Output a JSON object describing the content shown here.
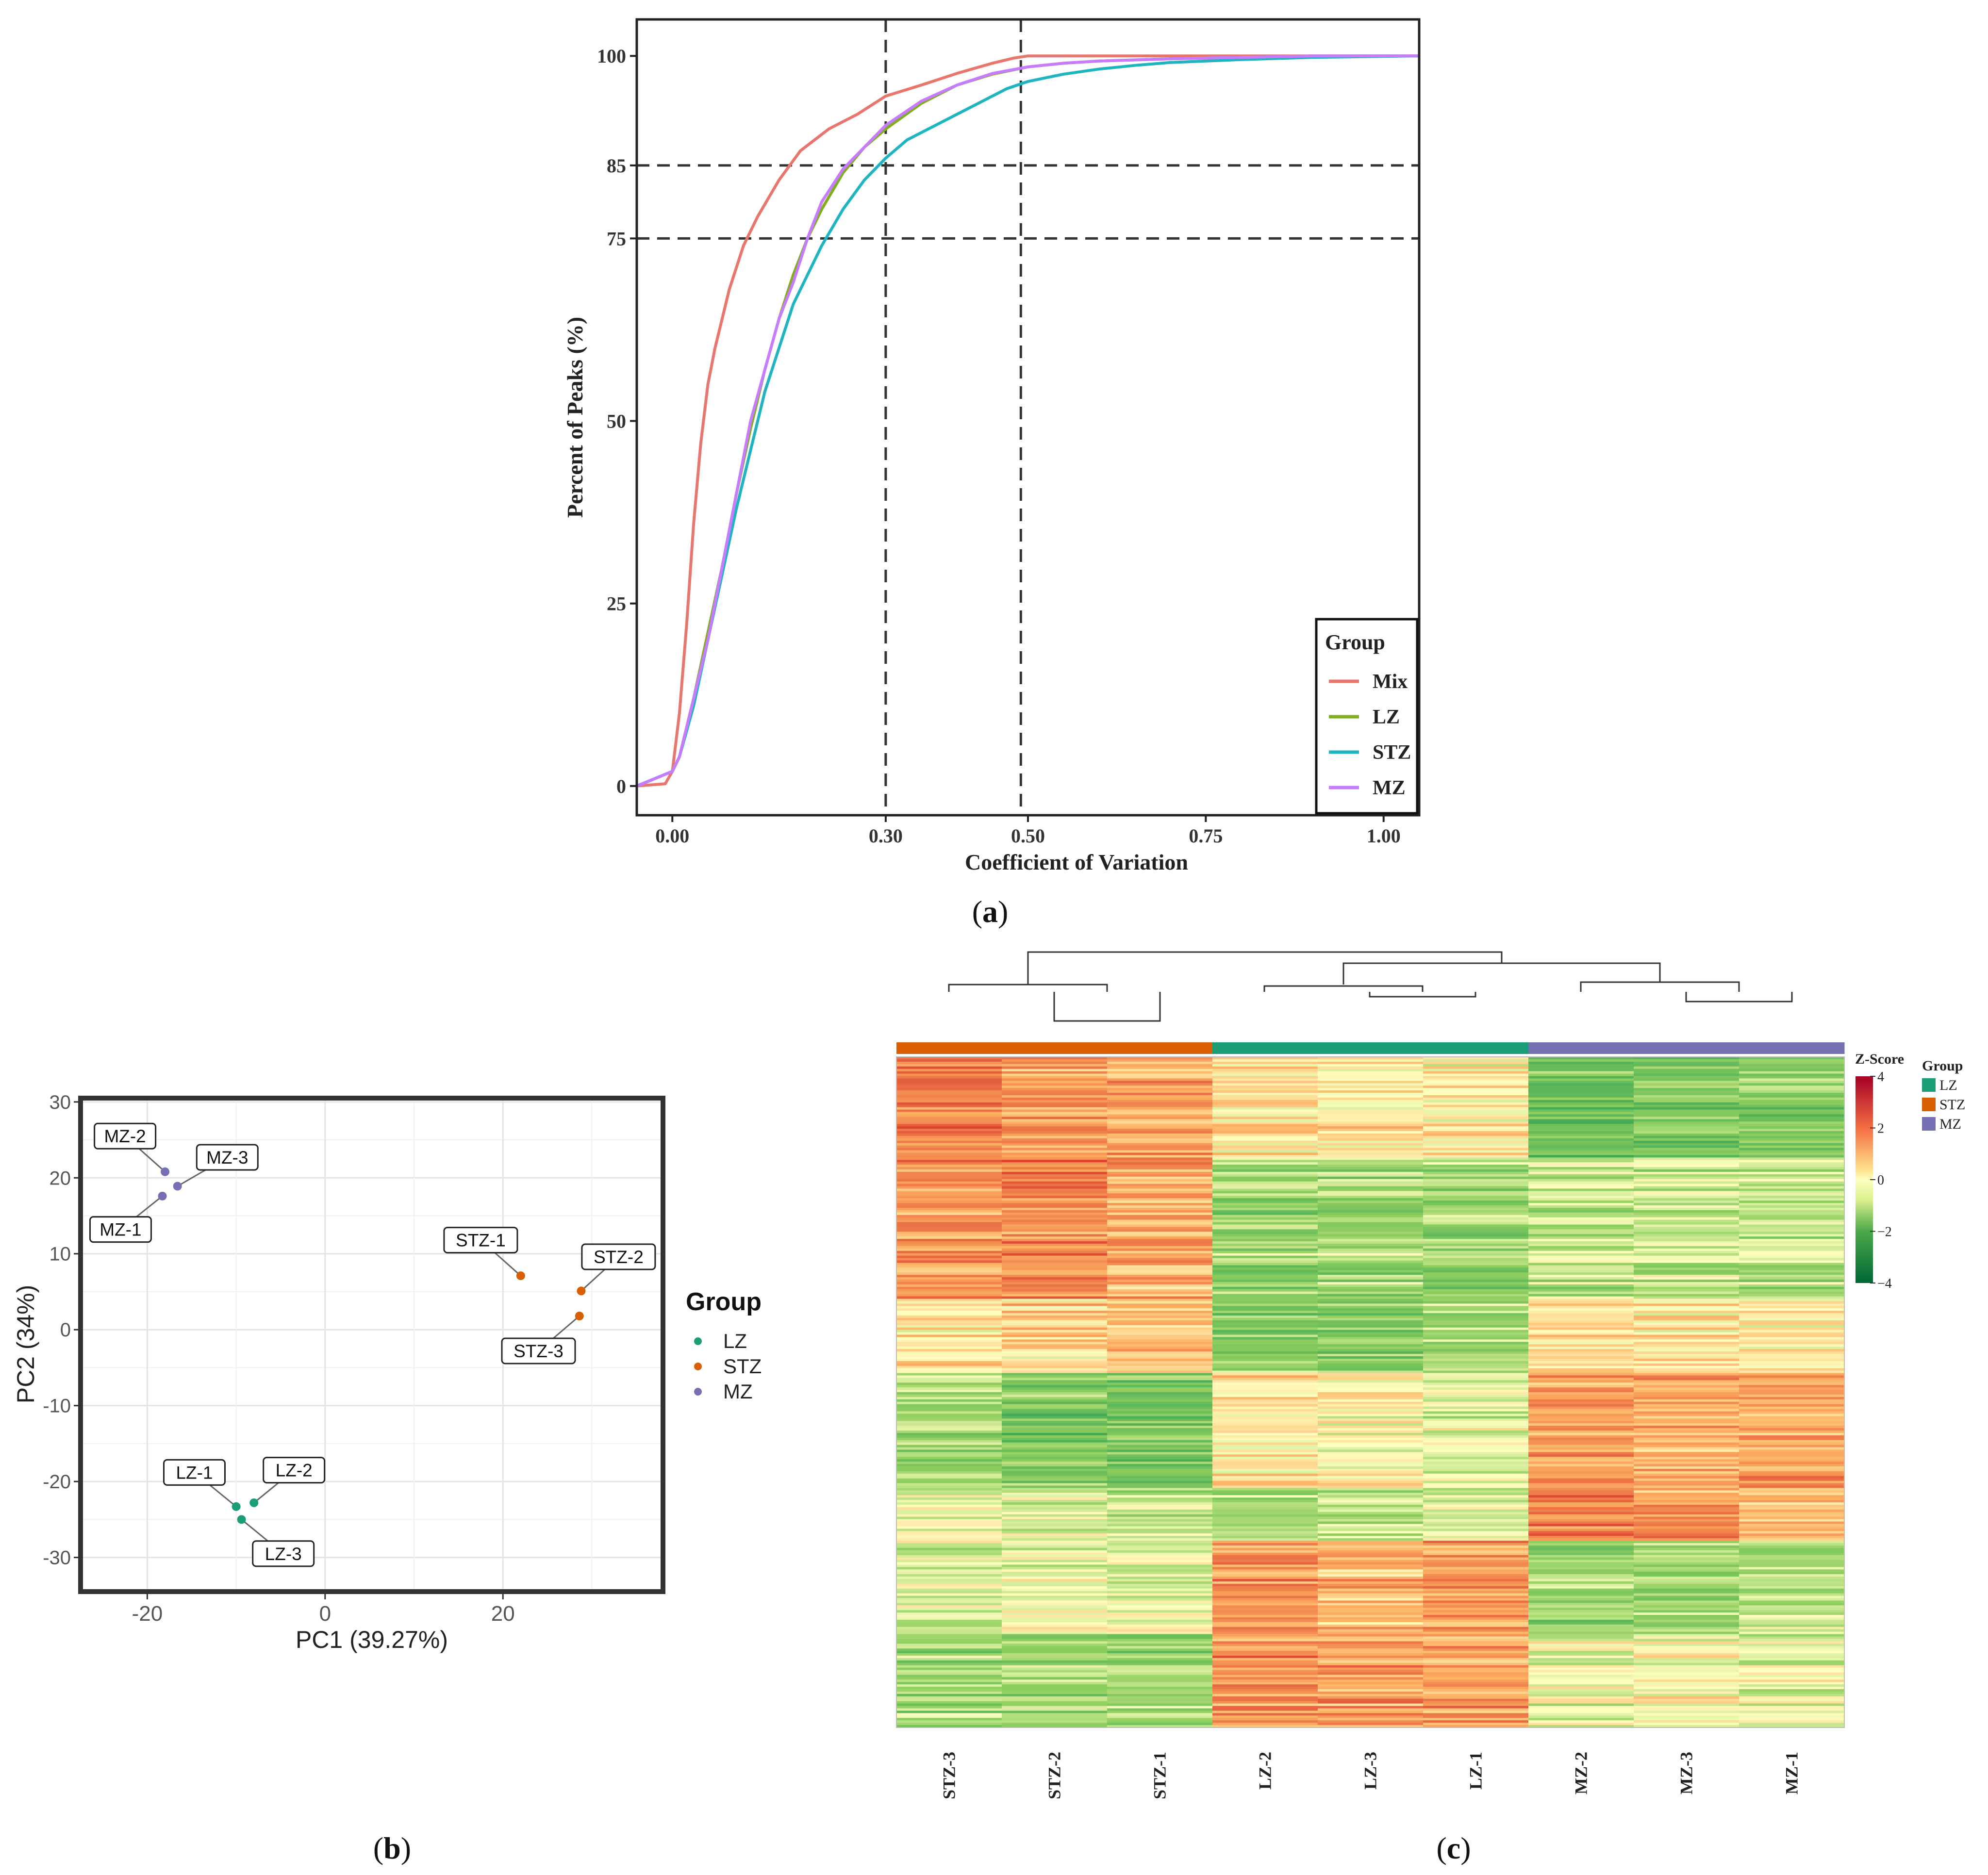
{
  "chart_data": [
    {
      "type": "line",
      "panel_label": "(a)",
      "panel_letter": "a",
      "title": "",
      "xlabel": "Coefficient of Variation",
      "ylabel": "Percent of Peaks (%)",
      "xlim": [
        -0.05,
        1.05
      ],
      "ylim": [
        -4,
        105
      ],
      "x_ticks": [
        0.0,
        0.3,
        0.5,
        0.75,
        1.0
      ],
      "x_tick_labels": [
        "0.00",
        "0.30",
        "0.50",
        "0.75",
        "1.00"
      ],
      "y_ticks": [
        0,
        25,
        50,
        75,
        85,
        100
      ],
      "y_tick_labels": [
        "0",
        "25",
        "50",
        "75",
        "85",
        "100"
      ],
      "reference_lines": {
        "vertical": [
          0.3,
          0.49
        ],
        "horizontal": [
          75,
          85
        ]
      },
      "legend": {
        "title": "Group",
        "position": "bottom-right"
      },
      "series": [
        {
          "name": "Mix",
          "color": "#e8766d",
          "x": [
            -0.05,
            -0.01,
            0.0,
            0.01,
            0.02,
            0.03,
            0.04,
            0.05,
            0.06,
            0.07,
            0.08,
            0.1,
            0.12,
            0.15,
            0.18,
            0.22,
            0.26,
            0.3,
            0.35,
            0.4,
            0.45,
            0.48,
            0.5,
            0.55,
            0.6,
            0.7,
            0.8,
            1.05
          ],
          "y": [
            0,
            0.3,
            2,
            10,
            22,
            36,
            47,
            55,
            60,
            64,
            68,
            74,
            78,
            83,
            87,
            90,
            92,
            94.5,
            96,
            97.6,
            99,
            99.7,
            100,
            100,
            100,
            100,
            100,
            100
          ]
        },
        {
          "name": "LZ",
          "color": "#7fae1e",
          "x": [
            -0.05,
            0.0,
            0.01,
            0.03,
            0.05,
            0.07,
            0.09,
            0.11,
            0.13,
            0.15,
            0.17,
            0.19,
            0.21,
            0.24,
            0.27,
            0.3,
            0.35,
            0.4,
            0.45,
            0.5,
            0.55,
            0.6,
            0.7,
            0.8,
            0.9,
            1.05
          ],
          "y": [
            0,
            2,
            4,
            12,
            21,
            30,
            40,
            49,
            57,
            64,
            70,
            75,
            79,
            84,
            87.5,
            90,
            93.5,
            96,
            97.5,
            98.5,
            99,
            99.3,
            99.6,
            99.8,
            100,
            100
          ]
        },
        {
          "name": "STZ",
          "color": "#1fb5c0",
          "x": [
            -0.05,
            0.0,
            0.01,
            0.03,
            0.05,
            0.07,
            0.09,
            0.11,
            0.13,
            0.15,
            0.17,
            0.19,
            0.21,
            0.24,
            0.27,
            0.3,
            0.33,
            0.37,
            0.42,
            0.47,
            0.5,
            0.55,
            0.6,
            0.65,
            0.7,
            0.8,
            0.9,
            1.05
          ],
          "y": [
            0,
            2,
            4,
            11,
            20,
            29,
            38,
            46,
            54,
            60,
            66,
            70,
            74,
            79,
            83,
            86,
            88.5,
            90.5,
            93,
            95.5,
            96.5,
            97.5,
            98.2,
            98.7,
            99.1,
            99.5,
            99.8,
            100
          ]
        },
        {
          "name": "MZ",
          "color": "#c77cff",
          "x": [
            -0.05,
            0.0,
            0.01,
            0.03,
            0.05,
            0.07,
            0.09,
            0.11,
            0.13,
            0.15,
            0.17,
            0.19,
            0.21,
            0.24,
            0.27,
            0.3,
            0.35,
            0.4,
            0.45,
            0.5,
            0.55,
            0.6,
            0.7,
            0.8,
            0.9,
            1.05
          ],
          "y": [
            0,
            2,
            4,
            12,
            20,
            30,
            40,
            50,
            57,
            64,
            69,
            75,
            80,
            84.5,
            87.5,
            90.5,
            93.8,
            96,
            97.6,
            98.5,
            99,
            99.3,
            99.6,
            99.8,
            100,
            100
          ]
        }
      ]
    },
    {
      "type": "scatter",
      "panel_label": "(b)",
      "panel_letter": "b",
      "title": "",
      "xlabel": "PC1 (39.27%)",
      "ylabel": "PC2 (34%)",
      "xlim": [
        -27.5,
        38
      ],
      "ylim": [
        -34.5,
        30.5
      ],
      "x_ticks": [
        -20,
        0,
        20
      ],
      "x_tick_labels": [
        "-20",
        "0",
        "20"
      ],
      "y_ticks": [
        -30,
        -20,
        -10,
        0,
        10,
        20,
        30
      ],
      "y_tick_labels": [
        "-30",
        "-20",
        "-10",
        "0",
        "10",
        "20",
        "30"
      ],
      "legend": {
        "title": "Group",
        "position": "right"
      },
      "groups": [
        {
          "name": "LZ",
          "color": "#1b9e77"
        },
        {
          "name": "STZ",
          "color": "#d95f02"
        },
        {
          "name": "MZ",
          "color": "#7570b3"
        }
      ],
      "points": [
        {
          "label": "MZ-2",
          "group": "MZ",
          "x": -18,
          "y": 20.8,
          "lx": -22.5,
          "ly": 25.5
        },
        {
          "label": "MZ-3",
          "group": "MZ",
          "x": -16.6,
          "y": 18.9,
          "lx": -11,
          "ly": 22.7
        },
        {
          "label": "MZ-1",
          "group": "MZ",
          "x": -18.3,
          "y": 17.6,
          "lx": -23,
          "ly": 13.2
        },
        {
          "label": "STZ-1",
          "group": "STZ",
          "x": 22,
          "y": 7.1,
          "lx": 17.5,
          "ly": 11.8
        },
        {
          "label": "STZ-2",
          "group": "STZ",
          "x": 28.8,
          "y": 5.1,
          "lx": 33,
          "ly": 9.6
        },
        {
          "label": "STZ-3",
          "group": "STZ",
          "x": 28.6,
          "y": 1.8,
          "lx": 24,
          "ly": -2.8
        },
        {
          "label": "LZ-1",
          "group": "LZ",
          "x": -10,
          "y": -23.3,
          "lx": -14.7,
          "ly": -18.8
        },
        {
          "label": "LZ-2",
          "group": "LZ",
          "x": -8,
          "y": -22.8,
          "lx": -3.5,
          "ly": -18.5
        },
        {
          "label": "LZ-3",
          "group": "LZ",
          "x": -9.4,
          "y": -25,
          "lx": -4.7,
          "ly": -29.5
        }
      ]
    },
    {
      "type": "heatmap",
      "panel_label": "(c)",
      "panel_letter": "c",
      "title": "",
      "columns": [
        "STZ-3",
        "STZ-2",
        "STZ-1",
        "LZ-2",
        "LZ-3",
        "LZ-1",
        "MZ-2",
        "MZ-3",
        "MZ-1"
      ],
      "column_groups": [
        "STZ",
        "STZ",
        "STZ",
        "LZ",
        "LZ",
        "LZ",
        "MZ",
        "MZ",
        "MZ"
      ],
      "row_count": 280,
      "colorbar": {
        "title": "Z-Score",
        "ticks": [
          4,
          2,
          0,
          -2,
          -4
        ],
        "tick_labels": [
          "4",
          "2",
          "0",
          "−2",
          "−4"
        ],
        "range": [
          -4,
          4
        ]
      },
      "colors": {
        "high": "#a50026",
        "upper": "#f46d43",
        "mid_high": "#fee08b",
        "mid": "#ffffbf",
        "mid_low": "#a6d96a",
        "lower": "#4aa84a",
        "low": "#006837"
      },
      "legend": {
        "title": "Group",
        "position": "top-right",
        "entries": [
          {
            "name": "LZ",
            "color": "#1b9e77"
          },
          {
            "name": "STZ",
            "color": "#d95f02"
          },
          {
            "name": "MZ",
            "color": "#7570b3"
          }
        ]
      }
    }
  ]
}
